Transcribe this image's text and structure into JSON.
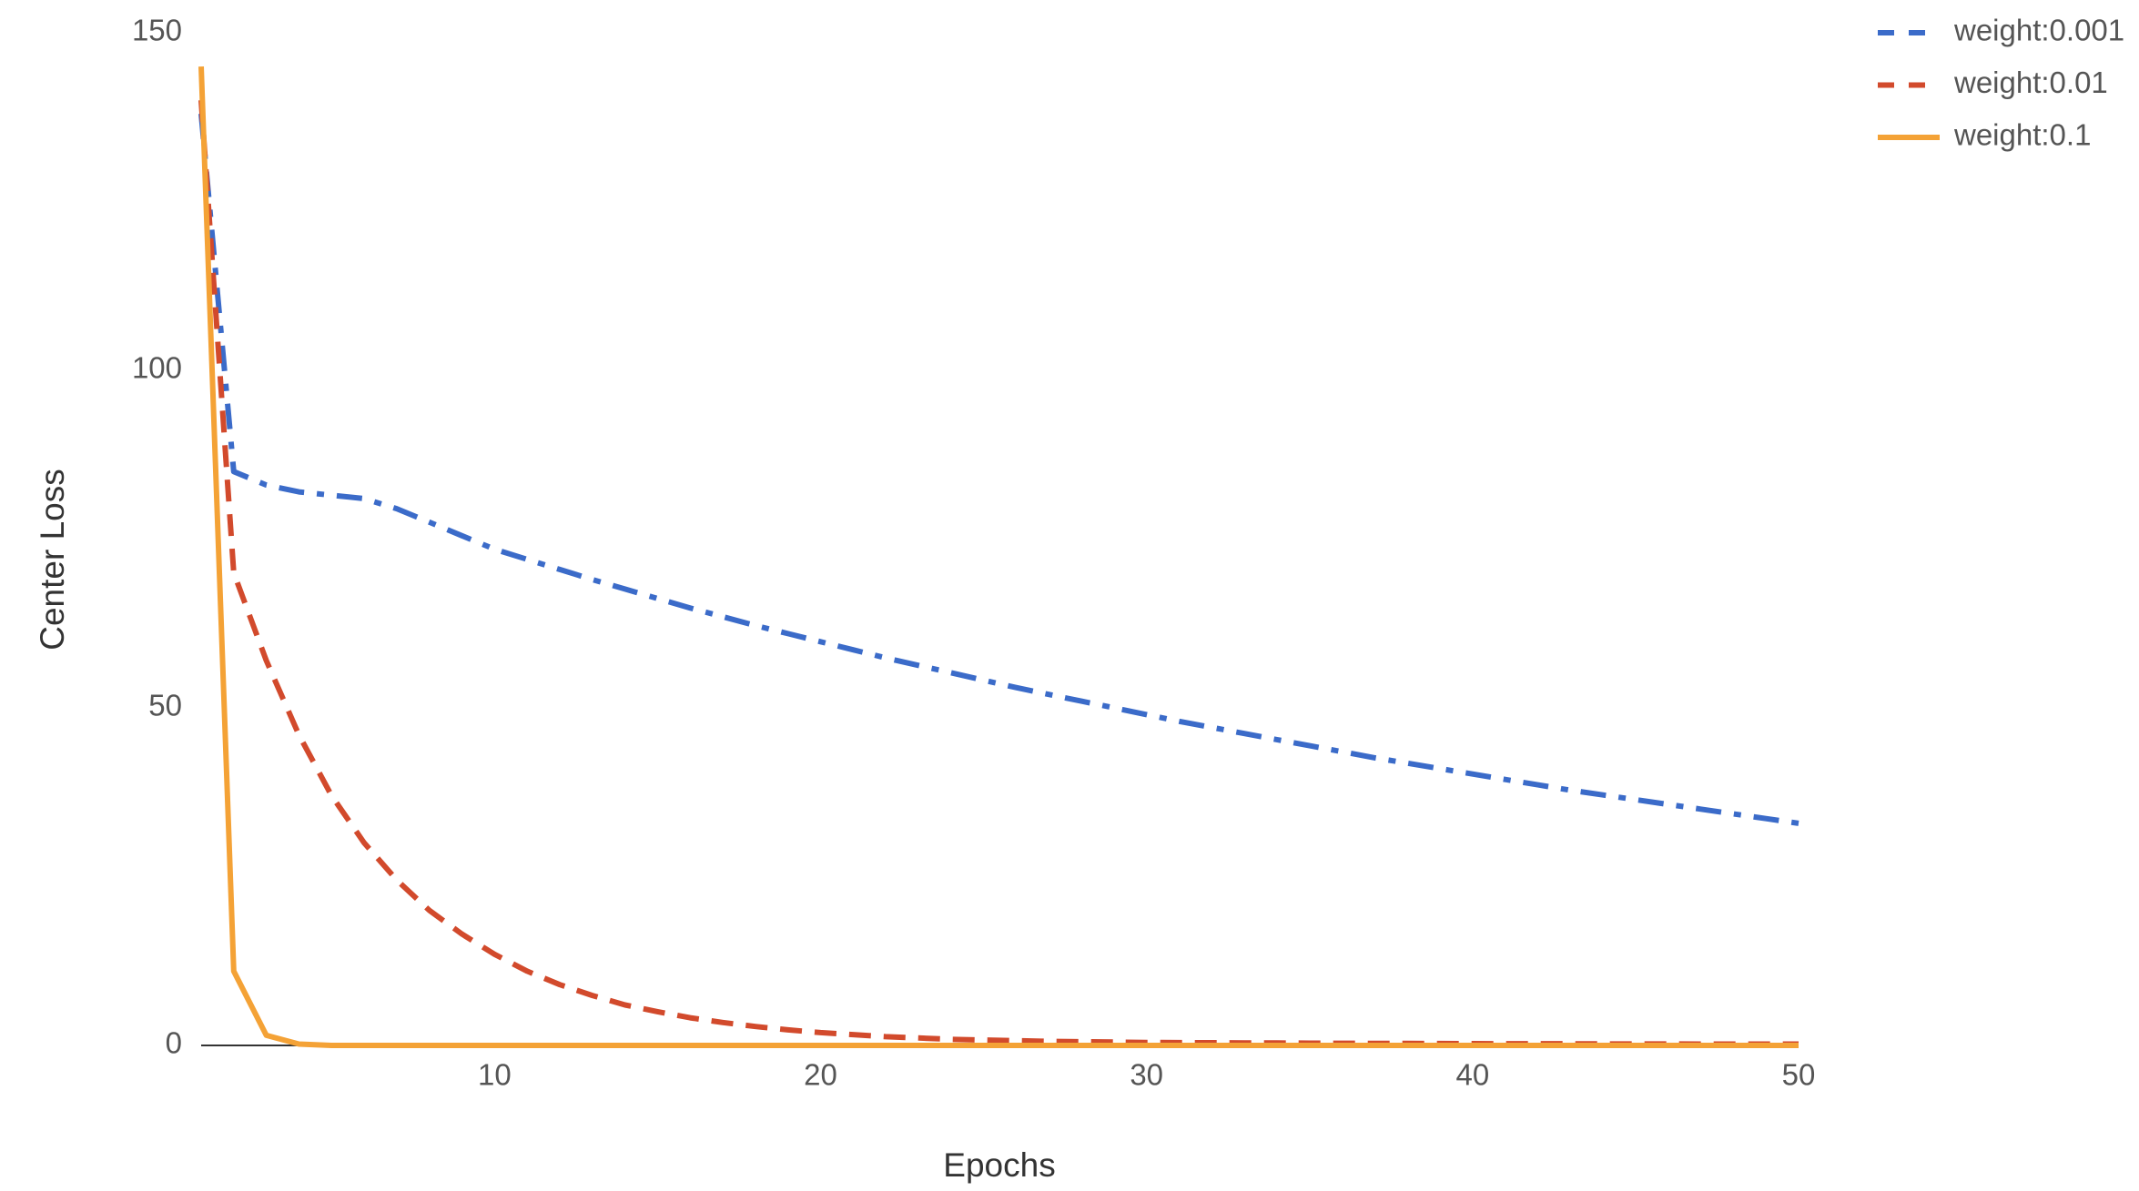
{
  "chart_data": {
    "type": "line",
    "y_label": "Center Loss",
    "x_label": "Epochs",
    "x": [
      1,
      2,
      3,
      4,
      5,
      6,
      7,
      8,
      9,
      10,
      11,
      12,
      13,
      14,
      15,
      16,
      17,
      18,
      19,
      20,
      21,
      22,
      23,
      24,
      25,
      26,
      27,
      28,
      29,
      30,
      31,
      32,
      33,
      34,
      35,
      36,
      37,
      38,
      39,
      40,
      41,
      42,
      43,
      44,
      45,
      46,
      47,
      48,
      49,
      50
    ],
    "xlim": [
      1,
      50
    ],
    "xticks": [
      10,
      20,
      30,
      40,
      50
    ],
    "ylim": [
      0,
      150
    ],
    "yticks": [
      0,
      50,
      100,
      150
    ],
    "grid": false,
    "legend": "top-right",
    "series": [
      {
        "name": "weight:0.001",
        "color": "#3b6bc9",
        "line_style": "dash-dot",
        "values": [
          138,
          85,
          83,
          82,
          81.5,
          81,
          79.5,
          77.5,
          75.5,
          73.5,
          72,
          70.5,
          69,
          67.6,
          66.2,
          64.8,
          63.5,
          62.2,
          61,
          59.8,
          58.6,
          57.4,
          56.3,
          55.2,
          54.1,
          53,
          52,
          51,
          50,
          49,
          48,
          47.1,
          46.2,
          45.3,
          44.4,
          43.5,
          42.6,
          41.8,
          41,
          40.2,
          39.4,
          38.6,
          37.8,
          37.1,
          36.4,
          35.7,
          35,
          34.3,
          33.6,
          32.9
        ]
      },
      {
        "name": "weight:0.01",
        "color": "#d24a2c",
        "line_style": "dashed",
        "values": [
          140,
          70,
          57,
          46,
          37,
          30,
          24.5,
          20,
          16.5,
          13.5,
          11,
          9,
          7.4,
          6,
          5,
          4.1,
          3.4,
          2.8,
          2.3,
          1.9,
          1.6,
          1.3,
          1.1,
          0.9,
          0.8,
          0.7,
          0.6,
          0.55,
          0.5,
          0.45,
          0.42,
          0.4,
          0.38,
          0.36,
          0.34,
          0.32,
          0.3,
          0.29,
          0.28,
          0.27,
          0.26,
          0.25,
          0.24,
          0.23,
          0.22,
          0.21,
          0.2,
          0.2,
          0.2,
          0.2
        ]
      },
      {
        "name": "weight:0.1",
        "color": "#f4a236",
        "line_style": "solid",
        "values": [
          145,
          11,
          1.5,
          0.2,
          0,
          0,
          0,
          0,
          0,
          0,
          0,
          0,
          0,
          0,
          0,
          0,
          0,
          0,
          0,
          0,
          0,
          0,
          0,
          0,
          0,
          0,
          0,
          0,
          0,
          0,
          0,
          0,
          0,
          0,
          0,
          0,
          0,
          0,
          0,
          0,
          0,
          0,
          0,
          0,
          0,
          0,
          0,
          0,
          0,
          0
        ]
      }
    ]
  }
}
